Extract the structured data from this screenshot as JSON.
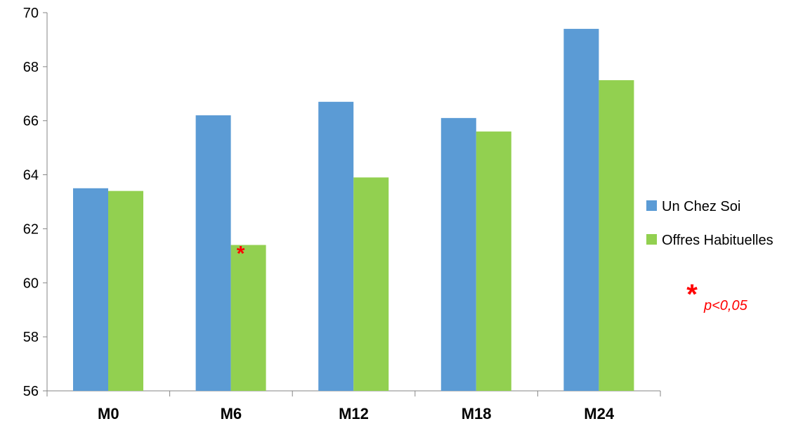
{
  "chart_data": {
    "type": "bar",
    "title": "",
    "xlabel": "",
    "ylabel": "",
    "categories": [
      "M0",
      "M6",
      "M12",
      "M18",
      "M24"
    ],
    "ylim": [
      56,
      70
    ],
    "yticks": [
      56,
      58,
      60,
      62,
      64,
      66,
      68,
      70
    ],
    "grid": false,
    "legend_position": "right",
    "series": [
      {
        "name": "Un Chez Soi",
        "color": "#5B9BD5",
        "values": [
          63.5,
          66.2,
          66.7,
          66.1,
          69.4
        ]
      },
      {
        "name": "Offres Habituelles",
        "color": "#92D050",
        "values": [
          63.4,
          61.4,
          63.9,
          65.6,
          67.5
        ]
      }
    ],
    "annotations": [
      {
        "text": "*",
        "category": "M6",
        "series": "Offres Habituelles",
        "color": "#FF0000"
      }
    ],
    "significance_note": {
      "symbol": "*",
      "text": "p<0,05",
      "color": "#FF0000"
    }
  }
}
